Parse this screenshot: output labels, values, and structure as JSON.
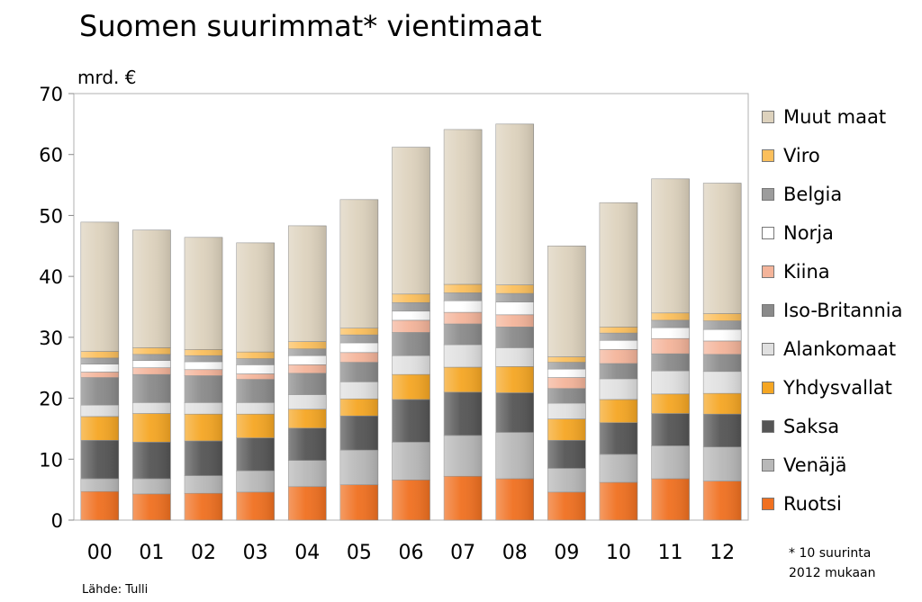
{
  "header": {
    "title": "Suomen suurimmat* vientimaat",
    "unit": "mrd. €"
  },
  "footnote": {
    "line1": "* 10 suurinta",
    "line2": "2012 mukaan"
  },
  "source": "Lähde: Tulli",
  "chart_data": {
    "type": "bar",
    "stacked": true,
    "title": "Suomen suurimmat* vientimaat",
    "ylabel": "mrd. €",
    "xlabel": "",
    "ylim": [
      0,
      70
    ],
    "yticks": [
      0,
      10,
      20,
      30,
      40,
      50,
      60,
      70
    ],
    "legend_position": "right",
    "categories": [
      "00",
      "01",
      "02",
      "03",
      "04",
      "05",
      "06",
      "07",
      "08",
      "09",
      "10",
      "11",
      "12"
    ],
    "series": [
      {
        "name": "Ruotsi",
        "color": "#f07020",
        "values": [
          4.7,
          4.3,
          4.4,
          4.6,
          5.5,
          5.8,
          6.6,
          7.2,
          6.8,
          4.6,
          6.2,
          6.8,
          6.4
        ]
      },
      {
        "name": "Venäjä",
        "color": "#b8b8b8",
        "values": [
          2.1,
          2.5,
          2.9,
          3.5,
          4.3,
          5.7,
          6.2,
          6.7,
          7.6,
          3.9,
          4.6,
          5.4,
          5.6
        ]
      },
      {
        "name": "Saksa",
        "color": "#555555",
        "values": [
          6.3,
          6.0,
          5.7,
          5.4,
          5.3,
          5.6,
          7.0,
          7.1,
          6.5,
          4.6,
          5.2,
          5.3,
          5.4
        ]
      },
      {
        "name": "Yhdysvallat",
        "color": "#f5a623",
        "values": [
          3.9,
          4.7,
          4.4,
          3.9,
          3.1,
          2.8,
          4.1,
          4.1,
          4.3,
          3.5,
          3.8,
          3.2,
          3.4
        ]
      },
      {
        "name": "Alankomaat",
        "color": "#e0e0e0",
        "values": [
          1.9,
          1.8,
          1.9,
          1.9,
          2.4,
          2.8,
          3.1,
          3.7,
          3.1,
          2.6,
          3.4,
          3.8,
          3.6
        ]
      },
      {
        "name": "Iso-Britannia",
        "color": "#8a8a8a",
        "values": [
          4.5,
          4.6,
          4.4,
          3.8,
          3.5,
          3.2,
          3.8,
          3.4,
          3.4,
          2.4,
          2.5,
          2.8,
          2.8
        ]
      },
      {
        "name": "Kiina",
        "color": "#f4b49a",
        "values": [
          0.9,
          1.1,
          1.0,
          0.9,
          1.4,
          1.6,
          2.0,
          1.9,
          2.0,
          1.8,
          2.3,
          2.5,
          2.2
        ]
      },
      {
        "name": "Norja",
        "color": "#ffffff",
        "values": [
          1.3,
          1.2,
          1.3,
          1.5,
          1.5,
          1.6,
          1.5,
          1.9,
          2.1,
          1.4,
          1.5,
          1.8,
          1.9
        ]
      },
      {
        "name": "Belgia",
        "color": "#9c9c9c",
        "values": [
          1.0,
          1.0,
          1.0,
          1.0,
          1.1,
          1.3,
          1.4,
          1.3,
          1.4,
          1.1,
          1.2,
          1.2,
          1.4
        ]
      },
      {
        "name": "Viro",
        "color": "#fbbf5c",
        "values": [
          1.1,
          1.1,
          1.0,
          1.1,
          1.2,
          1.1,
          1.4,
          1.4,
          1.4,
          0.9,
          1.0,
          1.2,
          1.2
        ]
      },
      {
        "name": "Muut maat",
        "color": "#ddd2bd",
        "values": [
          21.2,
          19.3,
          18.4,
          17.9,
          19.0,
          21.1,
          24.1,
          25.4,
          26.4,
          18.2,
          20.4,
          22.0,
          21.4
        ]
      }
    ]
  }
}
